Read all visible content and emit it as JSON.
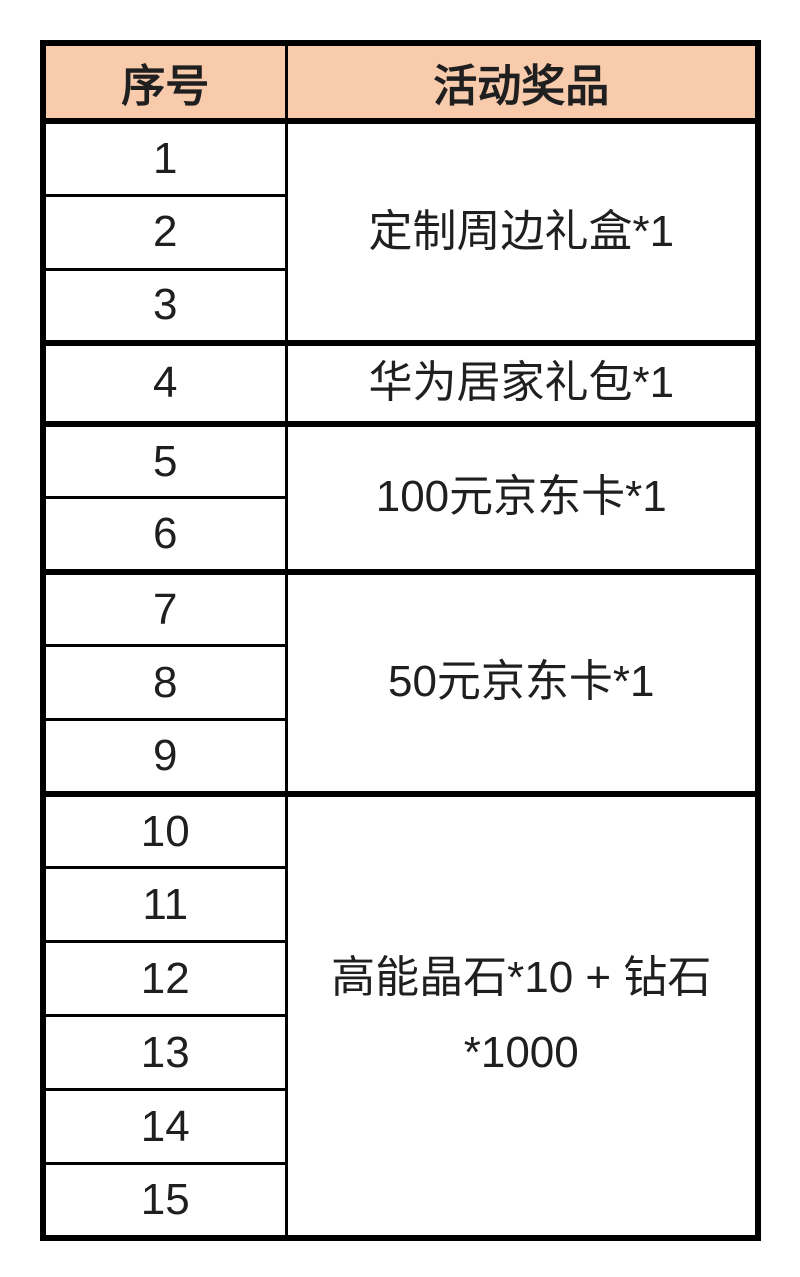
{
  "header": {
    "serial_label": "序号",
    "prize_label": "活动奖品"
  },
  "colors": {
    "header_bg": "#F8CBAD",
    "border": "#000000",
    "text": "#1F1F1F",
    "page_bg": "#FFFFFF"
  },
  "table": {
    "groups": [
      {
        "numbers": [
          "1",
          "2",
          "3"
        ],
        "prize": "定制周边礼盒*1"
      },
      {
        "numbers": [
          "4"
        ],
        "prize": "华为居家礼包*1"
      },
      {
        "numbers": [
          "5",
          "6"
        ],
        "prize": "100元京东卡*1"
      },
      {
        "numbers": [
          "7",
          "8",
          "9"
        ],
        "prize": "50元京东卡*1"
      },
      {
        "numbers": [
          "10",
          "11",
          "12",
          "13",
          "14",
          "15"
        ],
        "prize": [
          "高能晶石*10 + 钻石",
          "*1000"
        ]
      }
    ]
  }
}
